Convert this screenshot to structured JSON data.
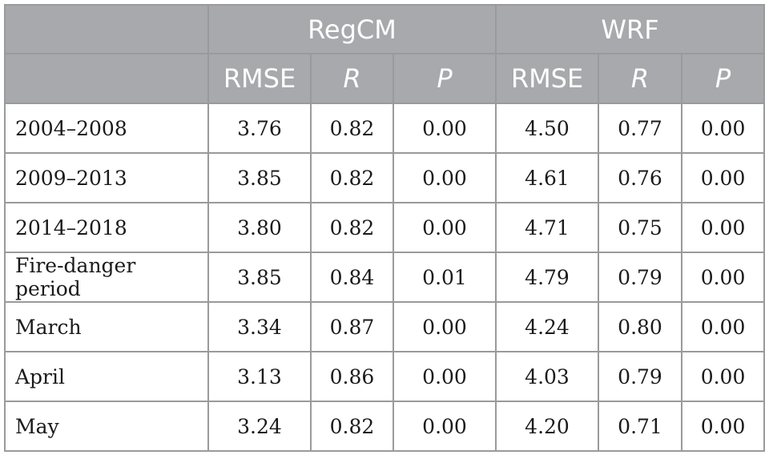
{
  "groups": {
    "regcm": "RegCM",
    "wrf": "WRF"
  },
  "columns": [
    "RMSE",
    "R",
    "P",
    "RMSE",
    "R",
    "P"
  ],
  "rows": [
    {
      "label": "2004–2008",
      "values": [
        "3.76",
        "0.82",
        "0.00",
        "4.50",
        "0.77",
        "0.00"
      ]
    },
    {
      "label": "2009–2013",
      "values": [
        "3.85",
        "0.82",
        "0.00",
        "4.61",
        "0.76",
        "0.00"
      ]
    },
    {
      "label": "2014–2018",
      "values": [
        "3.80",
        "0.82",
        "0.00",
        "4.71",
        "0.75",
        "0.00"
      ]
    },
    {
      "label": "Fire-danger period",
      "values": [
        "3.85",
        "0.84",
        "0.01",
        "4.79",
        "0.79",
        "0.00"
      ]
    },
    {
      "label": "March",
      "values": [
        "3.34",
        "0.87",
        "0.00",
        "4.24",
        "0.80",
        "0.00"
      ]
    },
    {
      "label": "April",
      "values": [
        "3.13",
        "0.86",
        "0.00",
        "4.03",
        "0.79",
        "0.00"
      ]
    },
    {
      "label": "May",
      "values": [
        "3.24",
        "0.82",
        "0.00",
        "4.20",
        "0.71",
        "0.00"
      ]
    }
  ]
}
